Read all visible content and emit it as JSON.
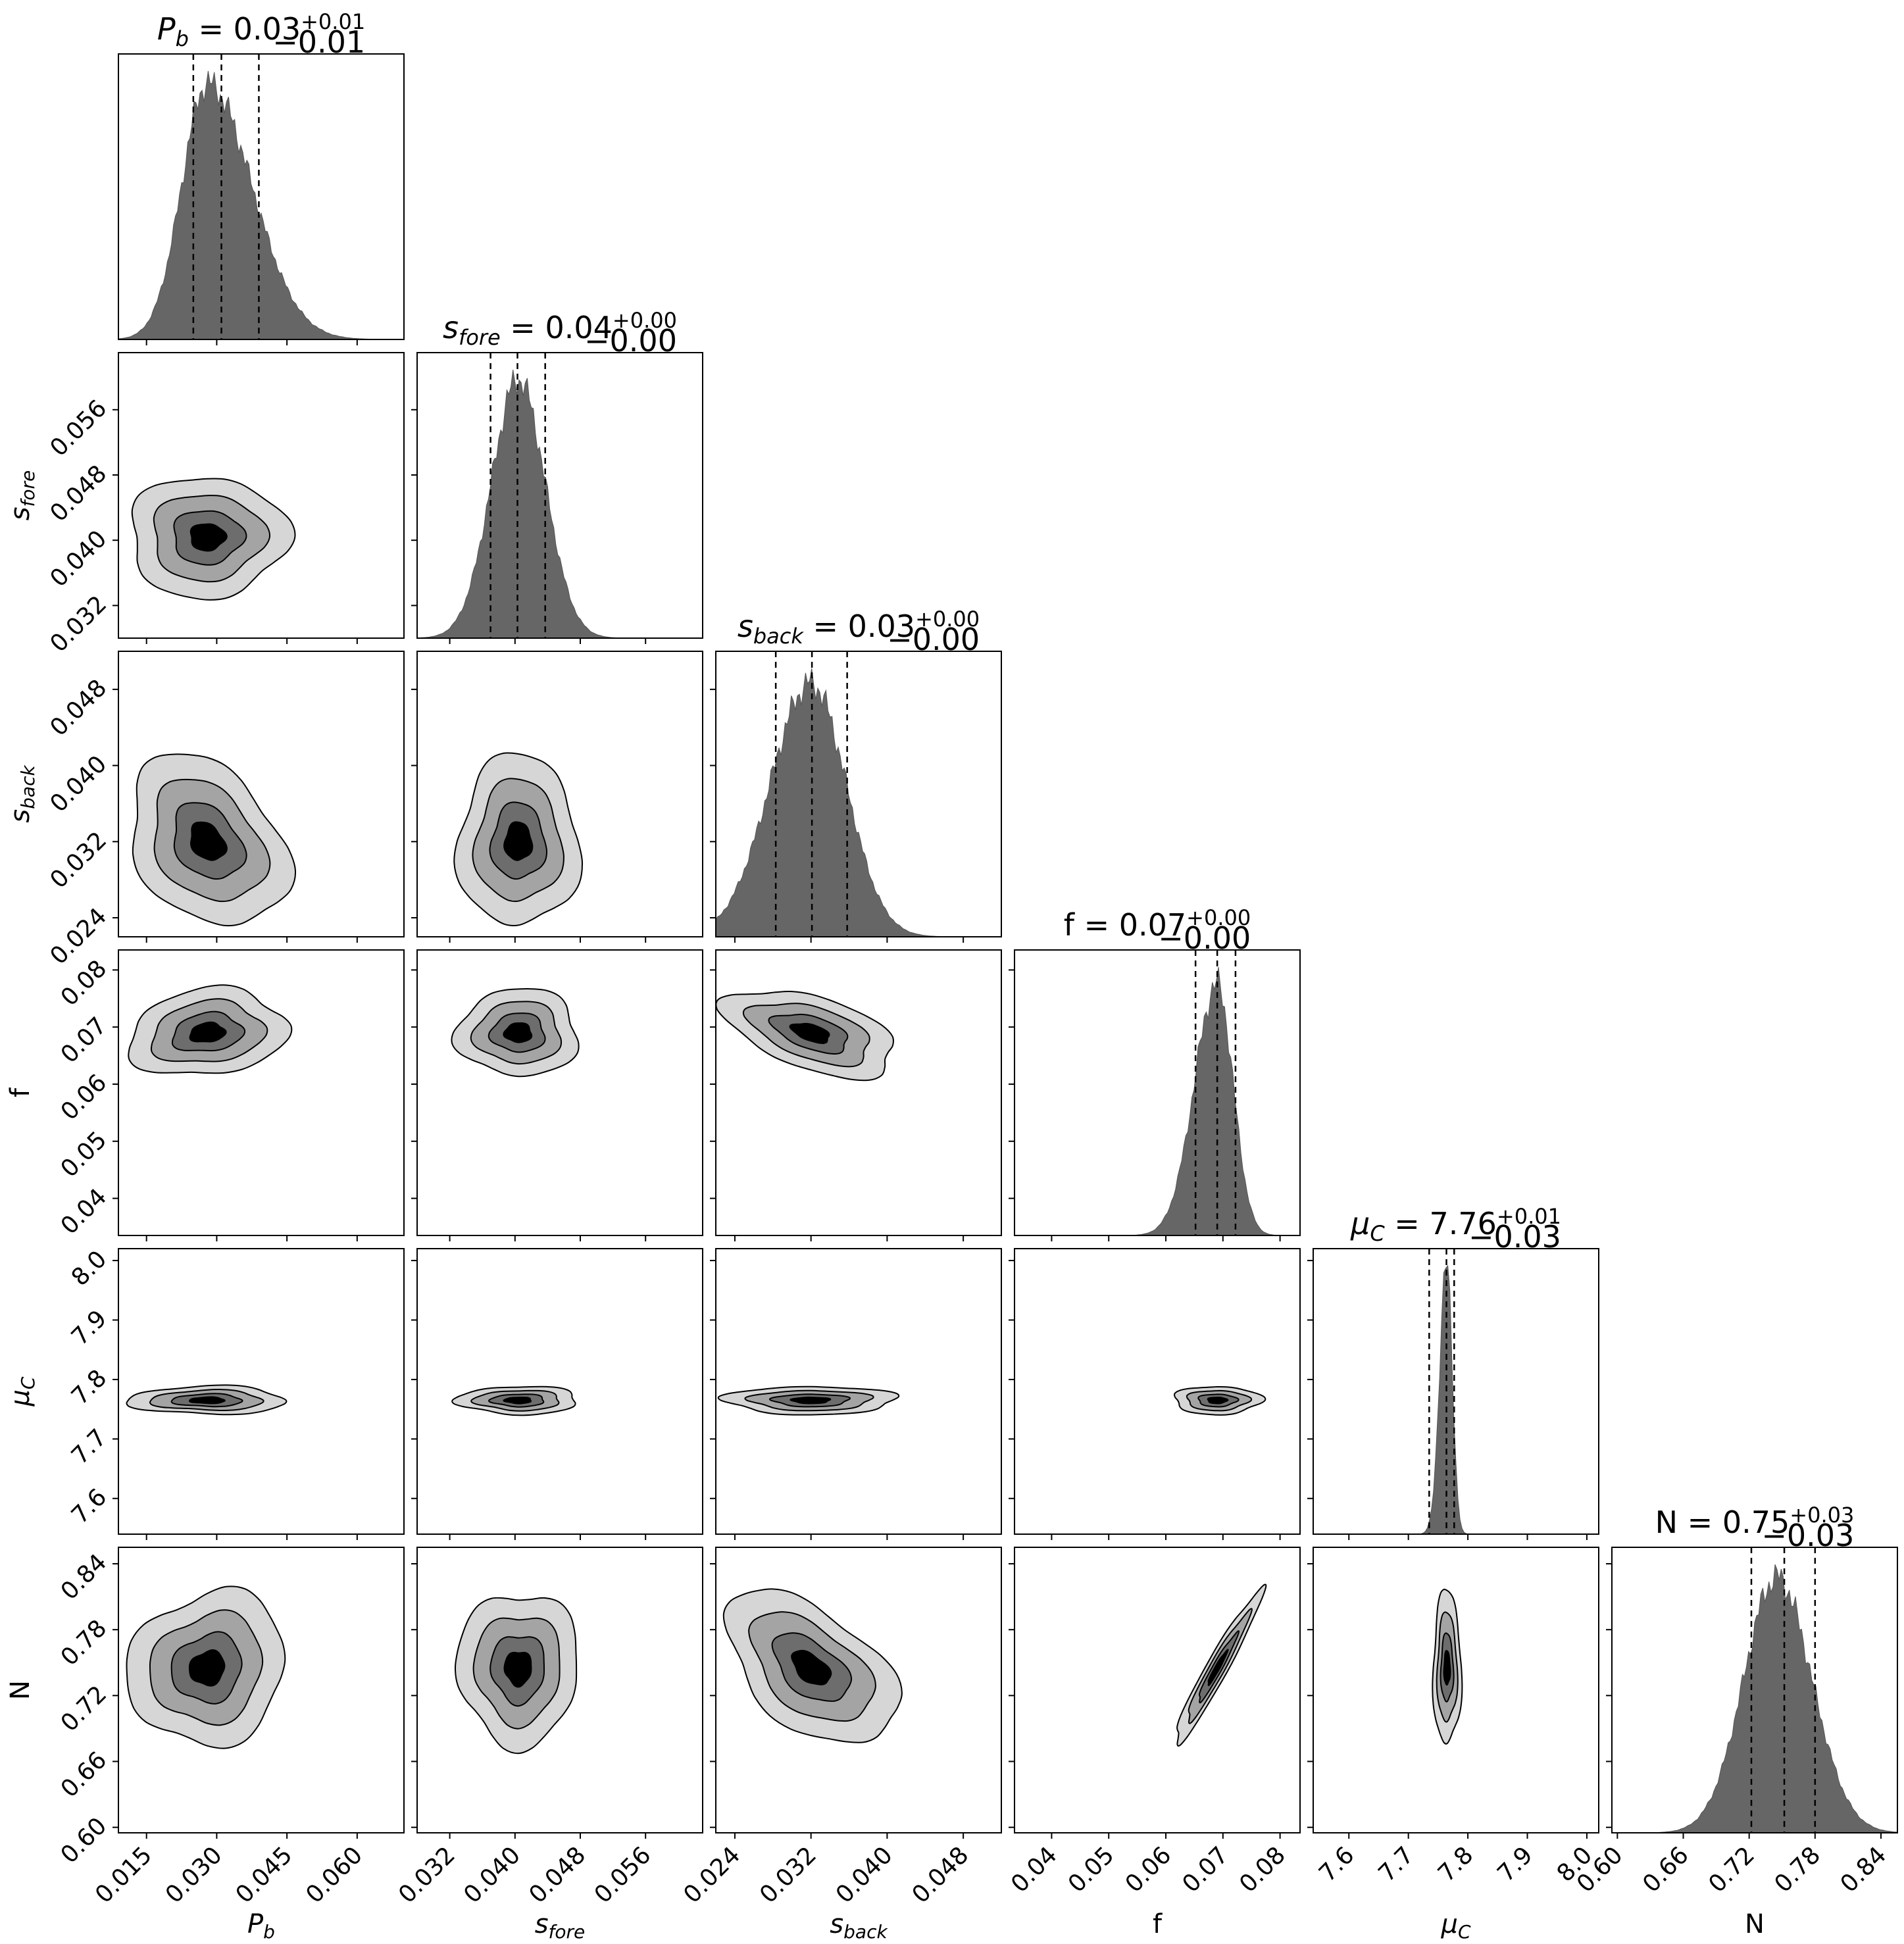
{
  "chart_data": {
    "type": "corner",
    "parameters": [
      {
        "key": "Pb",
        "label_main": "P",
        "label_sub": "b",
        "italic": true,
        "median": "0.03",
        "plus": "+0.01",
        "minus": "−0.01",
        "range": [
          0.009,
          0.07
        ],
        "ticks": [
          0.015,
          0.03,
          0.045,
          0.06
        ],
        "tick_labels": [
          "0.015",
          "0.030",
          "0.045",
          "0.060"
        ],
        "median_value": 0.031,
        "q16": 0.025,
        "q84": 0.039,
        "peak": 0.028,
        "sd_lo": 0.0055,
        "sd_hi": 0.0095
      },
      {
        "key": "sfore",
        "label_main": "s",
        "label_sub": "fore",
        "italic": true,
        "median": "0.04",
        "plus": "+0.00",
        "minus": "−0.00",
        "range": [
          0.028,
          0.063
        ],
        "ticks": [
          0.032,
          0.04,
          0.048,
          0.056
        ],
        "tick_labels": [
          "0.032",
          "0.040",
          "0.048",
          "0.056"
        ],
        "median_value": 0.0403,
        "q16": 0.037,
        "q84": 0.0437,
        "peak": 0.0404,
        "sd_lo": 0.0033,
        "sd_hi": 0.0033
      },
      {
        "key": "sback",
        "label_main": "s",
        "label_sub": "back",
        "italic": true,
        "median": "0.03",
        "plus": "+0.00",
        "minus": "−0.00",
        "range": [
          0.022,
          0.052
        ],
        "ticks": [
          0.024,
          0.032,
          0.04,
          0.048
        ],
        "tick_labels": [
          "0.024",
          "0.032",
          "0.040",
          "0.048"
        ],
        "median_value": 0.0321,
        "q16": 0.0283,
        "q84": 0.0358,
        "peak": 0.032,
        "sd_lo": 0.0043,
        "sd_hi": 0.0037
      },
      {
        "key": "f",
        "label_main": "f",
        "label_sub": "",
        "italic": false,
        "median": "0.07",
        "plus": "+0.00",
        "minus": "−0.00",
        "range": [
          0.0335,
          0.0835
        ],
        "ticks": [
          0.04,
          0.05,
          0.06,
          0.07,
          0.08
        ],
        "tick_labels": [
          "0.04",
          "0.05",
          "0.06",
          "0.07",
          "0.08"
        ],
        "median_value": 0.069,
        "q16": 0.0652,
        "q84": 0.0722,
        "peak": 0.069,
        "sd_lo": 0.004,
        "sd_hi": 0.0028
      },
      {
        "key": "muC",
        "label_main": "μ",
        "label_sub": "C",
        "italic": true,
        "median": "7.76",
        "plus": "+0.01",
        "minus": "−0.03",
        "range": [
          7.54,
          8.02
        ],
        "ticks": [
          7.6,
          7.7,
          7.8,
          7.9,
          8.0
        ],
        "tick_labels": [
          "7.6",
          "7.7",
          "7.8",
          "7.9",
          "8.0"
        ],
        "median_value": 7.764,
        "q16": 7.735,
        "q84": 7.777,
        "peak": 7.765,
        "sd_lo": 0.012,
        "sd_hi": 0.009
      },
      {
        "key": "N",
        "label_main": "N",
        "label_sub": "",
        "italic": false,
        "median": "0.75",
        "plus": "+0.03",
        "minus": "−0.03",
        "range": [
          0.595,
          0.855
        ],
        "ticks": [
          0.6,
          0.66,
          0.72,
          0.78,
          0.84
        ],
        "tick_labels": [
          "0.60",
          "0.66",
          "0.72",
          "0.78",
          "0.84"
        ],
        "median_value": 0.752,
        "q16": 0.722,
        "q84": 0.78,
        "peak": 0.745,
        "sd_lo": 0.03,
        "sd_hi": 0.032
      }
    ],
    "contour_levels": 4,
    "contour_colors": [
      "#d6d6d6",
      "#a4a4a4",
      "#6d6d6d",
      "#000000"
    ],
    "histogram_color": "#666666",
    "quantile_line_style": "dashed",
    "correlations": {
      "1-0": 0.0,
      "2-0": -0.3,
      "2-1": 0.0,
      "3-0": 0.15,
      "3-1": 0.0,
      "3-2": -0.5,
      "4-0": 0.0,
      "4-1": 0.0,
      "4-2": 0.0,
      "4-3": 0.0,
      "5-0": 0.1,
      "5-1": 0.0,
      "5-2": -0.5,
      "5-3": 0.96,
      "5-4": 0.0
    },
    "title_separator": " = "
  }
}
